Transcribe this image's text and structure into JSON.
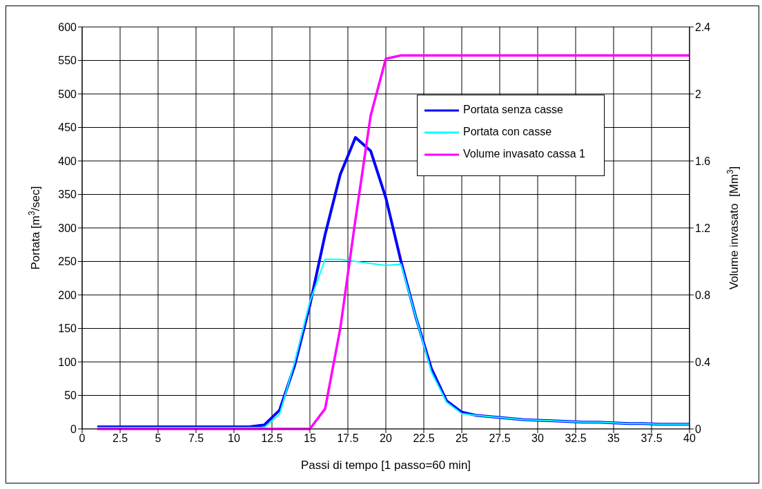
{
  "chart_data": {
    "type": "line",
    "xlabel": "Passi di tempo [1 passo=60 min]",
    "ylabel": "Portata [m$^{3}$/sec]",
    "y2label": "Volume invasato  [Mm$^{3}$]",
    "x": [
      1,
      2,
      3,
      4,
      5,
      6,
      7,
      8,
      9,
      10,
      11,
      12,
      13,
      14,
      15,
      16,
      17,
      18,
      19,
      20,
      21,
      22,
      23,
      24,
      25,
      26,
      27,
      28,
      29,
      30,
      31,
      32,
      33,
      34,
      35,
      36,
      37,
      38,
      39,
      40
    ],
    "series": [
      {
        "name": "Portata senza casse",
        "color": "#0000ff",
        "values": [
          3,
          3,
          3,
          3,
          3,
          3,
          3,
          3,
          3,
          3,
          3,
          6,
          28,
          95,
          185,
          290,
          380,
          435,
          415,
          345,
          250,
          165,
          90,
          42,
          25,
          20,
          18,
          16,
          14,
          13,
          12,
          11,
          10,
          10,
          9,
          8,
          8,
          7,
          7,
          7
        ]
      },
      {
        "name": "Portata con casse",
        "color": "#00ffff",
        "values": [
          2,
          2,
          2,
          2,
          2,
          2,
          2,
          2,
          2,
          2,
          2,
          2,
          22,
          100,
          190,
          253,
          253,
          250,
          247,
          244,
          246,
          165,
          85,
          40,
          23,
          20,
          18,
          16,
          14,
          13,
          12,
          11,
          10,
          10,
          9,
          8,
          8,
          7,
          7,
          7
        ]
      },
      {
        "name": "Volume invasato cassa 1",
        "color": "#ff00ff",
        "axis": "y2",
        "values": [
          0,
          0,
          0,
          0,
          0,
          0,
          0,
          0,
          0,
          0,
          0,
          0,
          0,
          0,
          0,
          0.12,
          0.6,
          1.25,
          1.87,
          2.21,
          2.23,
          2.23,
          2.23,
          2.23,
          2.23,
          2.23,
          2.23,
          2.23,
          2.23,
          2.23,
          2.23,
          2.23,
          2.23,
          2.23,
          2.23,
          2.23,
          2.23,
          2.23,
          2.23,
          2.23
        ]
      }
    ],
    "xlim": [
      0,
      40
    ],
    "xticks": [
      0,
      2.5,
      5,
      7.5,
      10,
      12.5,
      15,
      17.5,
      20,
      22.5,
      25,
      27.5,
      30,
      32.5,
      35,
      37.5,
      40
    ],
    "ylim": [
      0,
      600
    ],
    "yticks": [
      0,
      50,
      100,
      150,
      200,
      250,
      300,
      350,
      400,
      450,
      500,
      550,
      600
    ],
    "y2lim": [
      0,
      2.4
    ],
    "y2ticks": [
      0,
      0.4,
      0.8,
      1.2,
      1.6,
      2,
      2.4
    ],
    "grid": true,
    "legend": "top right"
  }
}
